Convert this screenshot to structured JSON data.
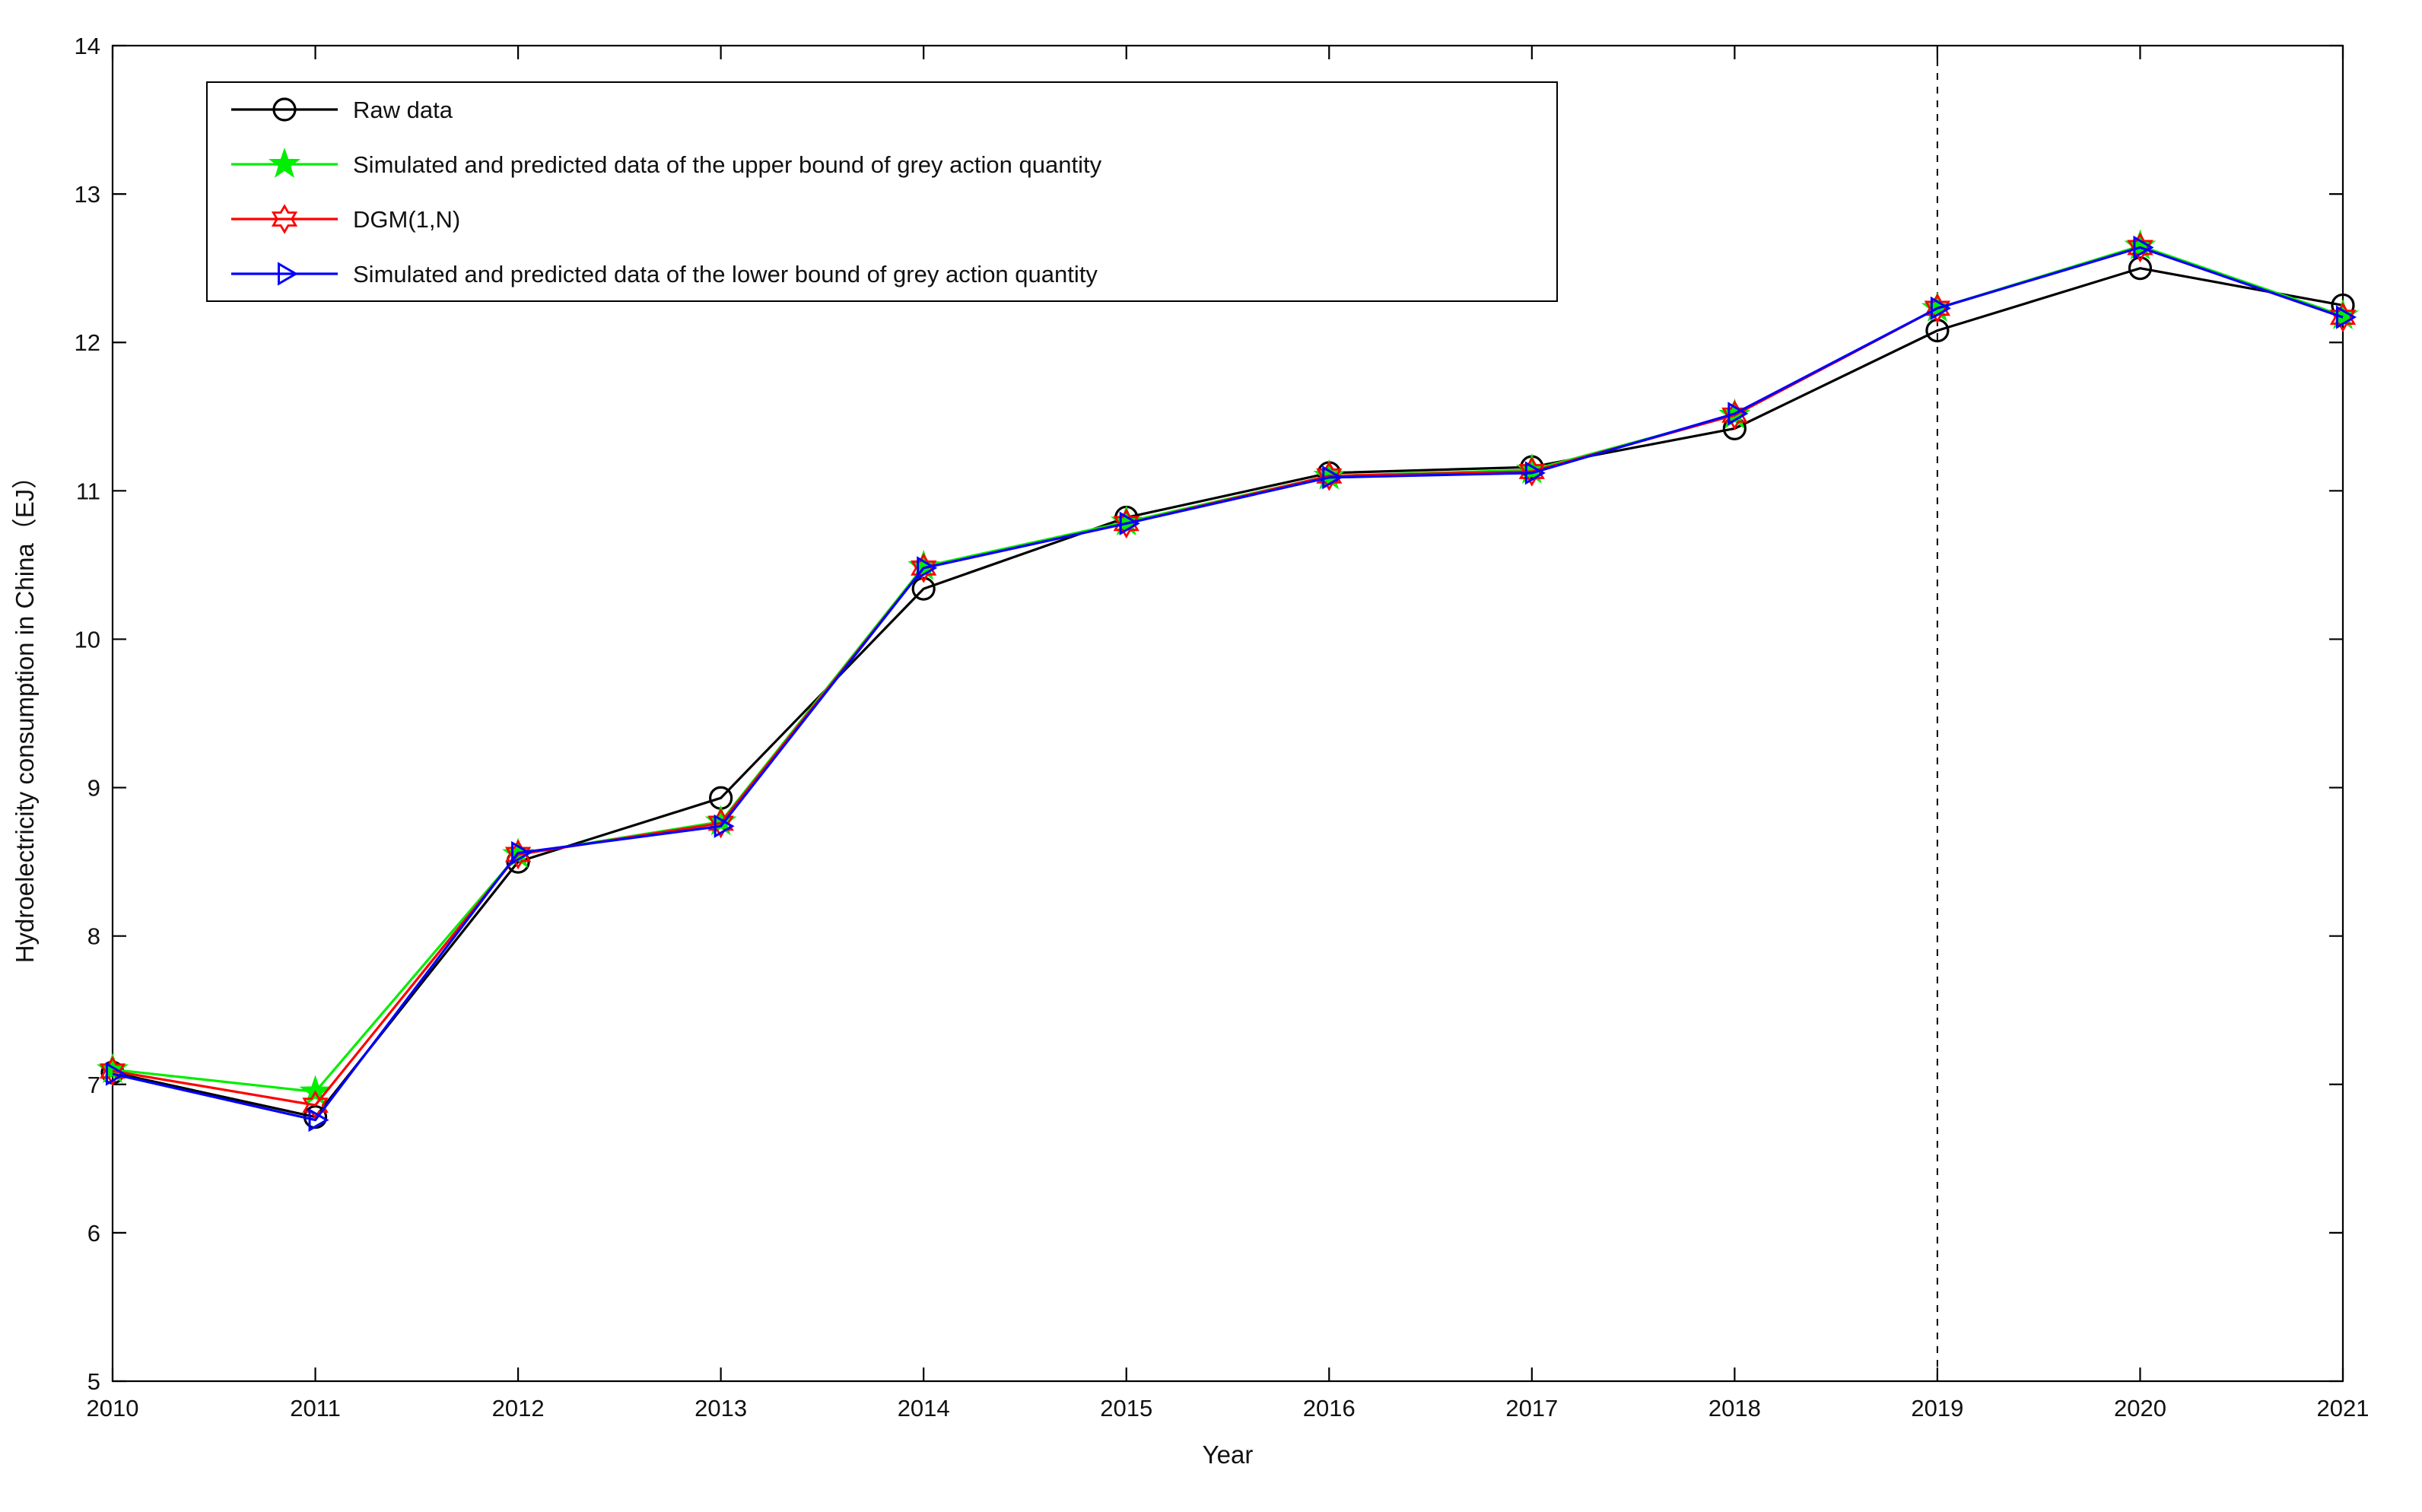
{
  "figure": {
    "background": "#ffffff",
    "axis_color": "#000000",
    "tick_label_color": "#1a1a1a"
  },
  "chart_data": {
    "type": "line",
    "title": "",
    "xlabel": "Year",
    "ylabel": "Hydroelectricity consumption in China（EJ）",
    "x": [
      2010,
      2011,
      2012,
      2013,
      2014,
      2015,
      2016,
      2017,
      2018,
      2019,
      2020,
      2021
    ],
    "xlim": [
      2010,
      2021
    ],
    "ylim": [
      5,
      14
    ],
    "xticks": [
      2010,
      2011,
      2012,
      2013,
      2014,
      2015,
      2016,
      2017,
      2018,
      2019,
      2020,
      2021
    ],
    "yticks": [
      5,
      6,
      7,
      8,
      9,
      10,
      11,
      12,
      13,
      14
    ],
    "grid": false,
    "forecast_divider_x": 2019,
    "forecast_divider_style": "dashed",
    "legend_position": "top-left",
    "series": [
      {
        "name": "Raw data",
        "color": "#000000",
        "marker": "circle",
        "marker_fill": "none",
        "values": [
          7.08,
          6.78,
          8.5,
          8.93,
          10.34,
          10.82,
          11.12,
          11.16,
          11.42,
          12.08,
          12.5,
          12.25
        ]
      },
      {
        "name": "Simulated and predicted data of the upper bound of grey action quantity",
        "color": "#00ee00",
        "marker": "star",
        "marker_fill": "#00ee00",
        "values": [
          7.1,
          6.95,
          8.55,
          8.77,
          10.49,
          10.79,
          11.1,
          11.14,
          11.51,
          12.23,
          12.65,
          12.18
        ]
      },
      {
        "name": "DGM(1,N)",
        "color": "#ff0000",
        "marker": "hexagram",
        "marker_fill": "none",
        "values": [
          7.09,
          6.86,
          8.55,
          8.76,
          10.48,
          10.78,
          11.1,
          11.13,
          11.51,
          12.23,
          12.64,
          12.17
        ]
      },
      {
        "name": "Simulated and predicted data of the lower bound of grey action quantity",
        "color": "#0000ff",
        "marker": "triangle-right",
        "marker_fill": "none",
        "values": [
          7.07,
          6.76,
          8.56,
          8.74,
          10.48,
          10.78,
          11.09,
          11.12,
          11.52,
          12.23,
          12.64,
          12.17
        ]
      }
    ]
  }
}
